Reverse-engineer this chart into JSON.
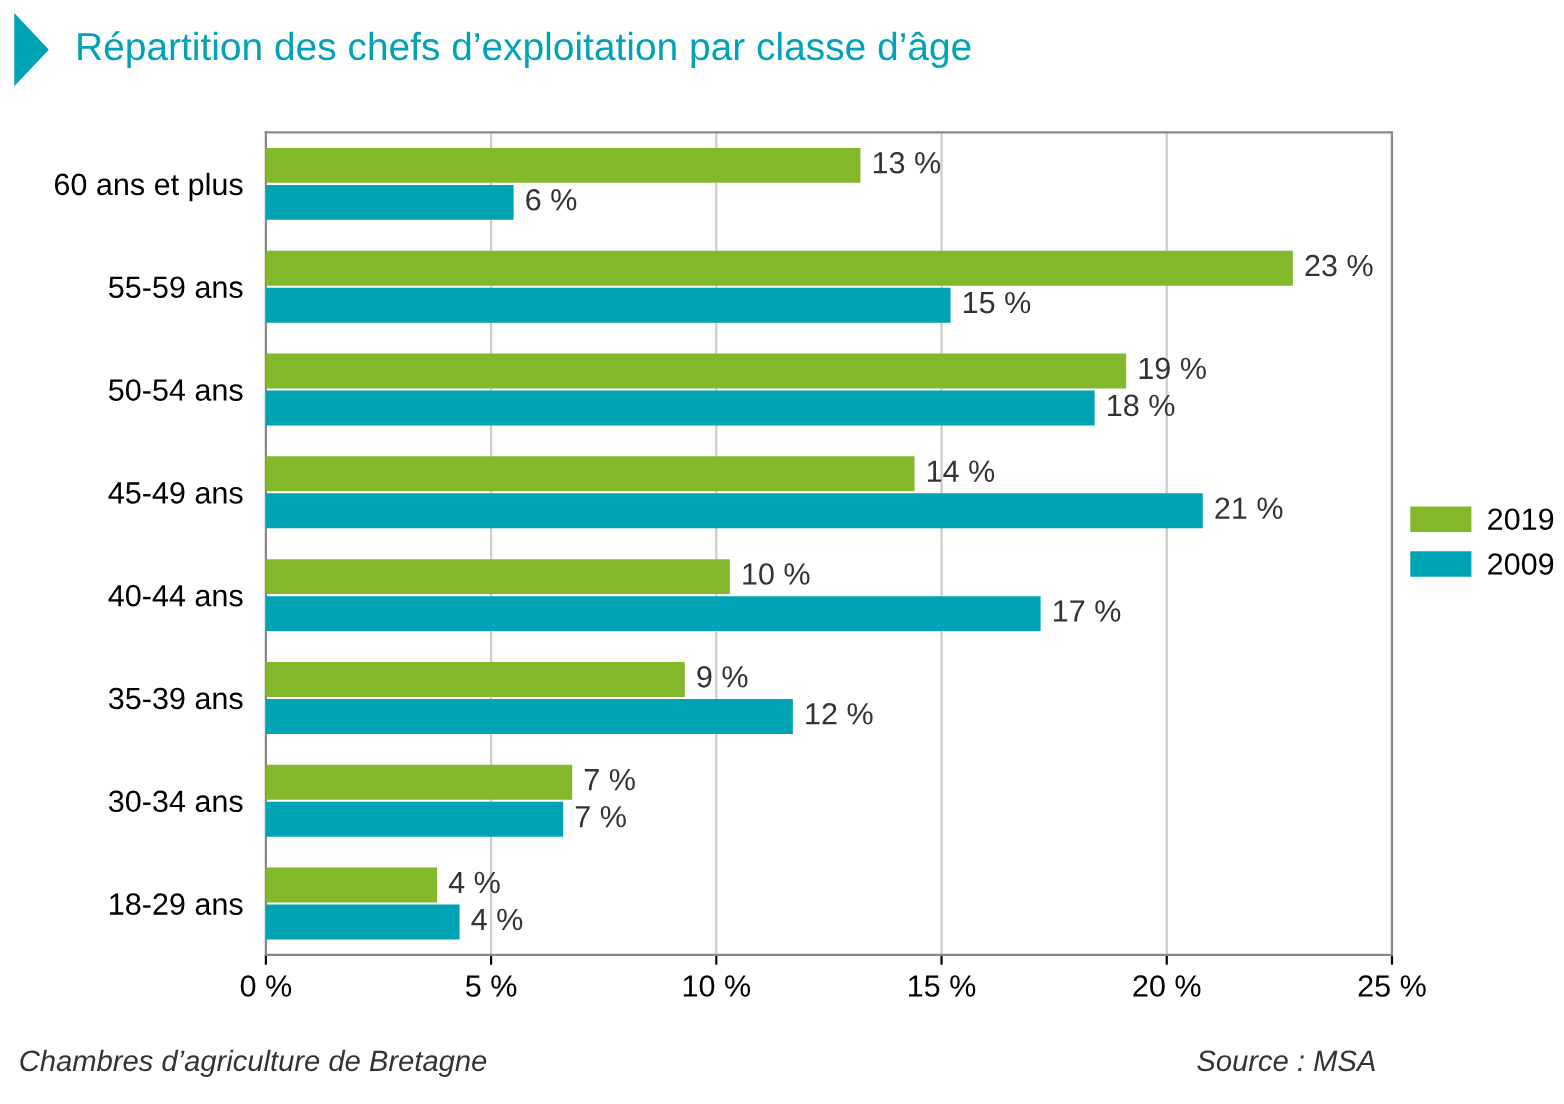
{
  "chart_data": {
    "type": "bar",
    "orientation": "horizontal",
    "title": "Répartition des chefs d’exploitation par classe d’âge",
    "categories": [
      "60 ans et plus",
      "55-59 ans",
      "50-54 ans",
      "45-49 ans",
      "40-44 ans",
      "35-39 ans",
      "30-34 ans",
      "18-29 ans"
    ],
    "series": [
      {
        "name": "2019",
        "color": "#84b82b",
        "values": [
          13.2,
          22.8,
          19.1,
          14.4,
          10.3,
          9.3,
          6.8,
          3.8
        ],
        "value_labels": [
          "13 %",
          "23 %",
          "19 %",
          "14 %",
          "10 %",
          "9 %",
          "7 %",
          "4 %"
        ]
      },
      {
        "name": "2009",
        "color": "#00a3b4",
        "values": [
          5.5,
          15.2,
          18.4,
          20.8,
          17.2,
          11.7,
          6.6,
          4.3
        ],
        "value_labels": [
          "6 %",
          "15 %",
          "18 %",
          "21 %",
          "17 %",
          "12 %",
          "7 %",
          "4 %"
        ]
      }
    ],
    "xlim": [
      0,
      25
    ],
    "xticks": [
      {
        "value": 0,
        "label": "0 %"
      },
      {
        "value": 5,
        "label": "5 %"
      },
      {
        "value": 10,
        "label": "10 %"
      },
      {
        "value": 15,
        "label": "15 %"
      },
      {
        "value": 20,
        "label": "20 %"
      },
      {
        "value": 25,
        "label": "25 %"
      }
    ],
    "grid": "x",
    "legend": "right",
    "annotations": [
      "Chambres d’agriculture de Bretagne",
      "Source : MSA"
    ]
  }
}
